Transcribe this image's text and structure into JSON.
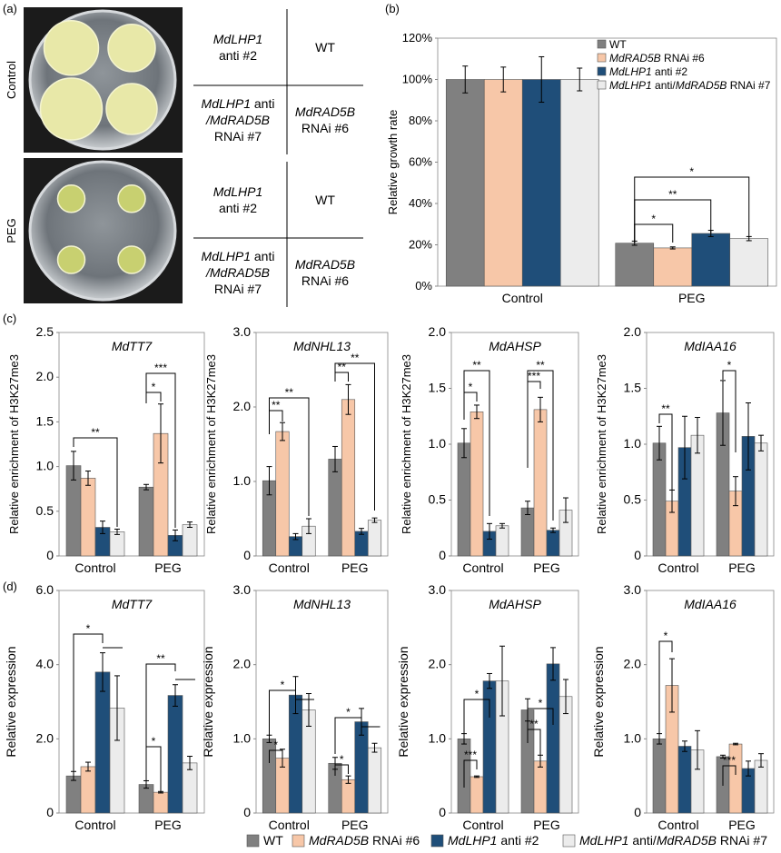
{
  "panel_labels": [
    "(a)",
    "(b)",
    "(c)",
    "(d)"
  ],
  "photo_rows": [
    {
      "label": "Control",
      "colony_color": "#e8e8a8"
    },
    {
      "label": "PEG",
      "colony_color": "#c8d070"
    }
  ],
  "plate_layout": [
    {
      "row": "Control",
      "cells": [
        [
          "MdLHP1",
          "anti #2",
          ""
        ],
        [
          "WT",
          "",
          ""
        ],
        [
          "MdLHP1 anti",
          "/MdRAD5B",
          "RNAi #7"
        ],
        [
          "MdRAD5B",
          "RNAi #6",
          ""
        ]
      ]
    },
    {
      "row": "PEG",
      "cells": [
        [
          "MdLHP1",
          "anti #2",
          ""
        ],
        [
          "WT",
          "",
          ""
        ],
        [
          "MdLHP1 anti",
          "/MdRAD5B",
          "RNAi #7"
        ],
        [
          "MdRAD5B",
          "RNAi #6",
          ""
        ]
      ]
    }
  ],
  "colors": {
    "WT": "#808080",
    "RAD5B": "#f7c7a8",
    "LHP1": "#1f4e79",
    "LHP1_RAD5B": "#ececec",
    "edge": "#555555"
  },
  "legend_b": [
    {
      "key": "WT",
      "italic": "",
      "text": "WT"
    },
    {
      "key": "RAD5B",
      "italic": "MdRAD5B",
      "text": " RNAi #6"
    },
    {
      "key": "LHP1",
      "italic": "MdLHP1",
      "text": " anti #2"
    },
    {
      "key": "LHP1_RAD5B",
      "italic": "MdLHP1",
      "text": " anti/",
      "italic2": "MdRAD5B",
      "text2": " RNAi #7"
    }
  ],
  "legend_bottom": [
    {
      "key": "WT",
      "italic": "",
      "text": "WT"
    },
    {
      "key": "RAD5B",
      "italic": "MdRAD5B",
      "text": " RNAi #6"
    },
    {
      "key": "LHP1",
      "italic": "MdLHP1",
      "text": " anti #2"
    },
    {
      "key": "LHP1_RAD5B",
      "italic": "MdLHP1",
      "text": " anti/",
      "italic2": "MdRAD5B",
      "text2": " RNAi #7"
    }
  ],
  "chart_data": [
    {
      "id": "b",
      "type": "bar",
      "title": "",
      "ylabel": "Relative growth rate",
      "categories": [
        "Control",
        "PEG"
      ],
      "ylim": [
        0,
        120
      ],
      "yticks": [
        "0%",
        "20%",
        "40%",
        "60%",
        "80%",
        "100%",
        "120%"
      ],
      "series": [
        {
          "key": "WT",
          "values": [
            100,
            20.8
          ],
          "errors": [
            6.5,
            1.0
          ]
        },
        {
          "key": "RAD5B",
          "values": [
            100,
            18.5
          ],
          "errors": [
            6.0,
            0.5
          ]
        },
        {
          "key": "LHP1",
          "values": [
            100,
            25.5
          ],
          "errors": [
            11.0,
            1.5
          ]
        },
        {
          "key": "LHP1_RAD5B",
          "values": [
            100,
            23.0
          ],
          "errors": [
            5.5,
            1.0
          ]
        }
      ],
      "annotations": [
        "*",
        "**",
        "*"
      ]
    },
    {
      "id": "c1",
      "type": "bar",
      "title": "MdTT7",
      "ylabel": "Relative enrichment of H3K27me3",
      "categories": [
        "Control",
        "PEG"
      ],
      "ylim": [
        0,
        2.5
      ],
      "yticks": [
        "0",
        "0.5",
        "1.0",
        "1.5",
        "2.0",
        "2.5"
      ],
      "series": [
        {
          "key": "WT",
          "values": [
            1.01,
            0.77
          ],
          "errors": [
            0.16,
            0.03
          ]
        },
        {
          "key": "RAD5B",
          "values": [
            0.87,
            1.37
          ],
          "errors": [
            0.08,
            0.33
          ]
        },
        {
          "key": "LHP1",
          "values": [
            0.32,
            0.23
          ],
          "errors": [
            0.07,
            0.06
          ]
        },
        {
          "key": "LHP1_RAD5B",
          "values": [
            0.27,
            0.35
          ],
          "errors": [
            0.03,
            0.03
          ]
        }
      ],
      "annotations": [
        "**",
        "*",
        "***"
      ]
    },
    {
      "id": "c2",
      "type": "bar",
      "title": "MdNHL13",
      "ylabel": "Relative enrichment of H3K27me3",
      "categories": [
        "Control",
        "PEG"
      ],
      "ylim": [
        0,
        3.0
      ],
      "yticks": [
        "0",
        "1.0",
        "2.0",
        "3.0"
      ],
      "series": [
        {
          "key": "WT",
          "values": [
            1.01,
            1.3
          ],
          "errors": [
            0.19,
            0.17
          ]
        },
        {
          "key": "RAD5B",
          "values": [
            1.67,
            2.1
          ],
          "errors": [
            0.12,
            0.2
          ]
        },
        {
          "key": "LHP1",
          "values": [
            0.26,
            0.33
          ],
          "errors": [
            0.04,
            0.04
          ]
        },
        {
          "key": "LHP1_RAD5B",
          "values": [
            0.4,
            0.48
          ],
          "errors": [
            0.1,
            0.03
          ]
        }
      ],
      "annotations": [
        "**",
        "**",
        "**",
        "**"
      ]
    },
    {
      "id": "c3",
      "type": "bar",
      "title": "MdAHSP",
      "ylabel": "Relative enrichment of H3K27me3",
      "categories": [
        "Control",
        "PEG"
      ],
      "ylim": [
        0,
        2.0
      ],
      "yticks": [
        "0",
        "0.5",
        "1.0",
        "1.5",
        "2.0"
      ],
      "series": [
        {
          "key": "WT",
          "values": [
            1.01,
            0.43
          ],
          "errors": [
            0.13,
            0.06
          ]
        },
        {
          "key": "RAD5B",
          "values": [
            1.29,
            1.31
          ],
          "errors": [
            0.06,
            0.11
          ]
        },
        {
          "key": "LHP1",
          "values": [
            0.22,
            0.23
          ],
          "errors": [
            0.07,
            0.02
          ]
        },
        {
          "key": "LHP1_RAD5B",
          "values": [
            0.27,
            0.41
          ],
          "errors": [
            0.02,
            0.11
          ]
        }
      ],
      "annotations": [
        "*",
        "**",
        "***",
        "**"
      ]
    },
    {
      "id": "c4",
      "type": "bar",
      "title": "MdIAA16",
      "ylabel": "Relative enrichment of H3K27me3",
      "categories": [
        "Control",
        "PEG"
      ],
      "ylim": [
        0,
        2.0
      ],
      "yticks": [
        "0",
        "0.5",
        "1.0",
        "1.5",
        "2.0"
      ],
      "series": [
        {
          "key": "WT",
          "values": [
            1.01,
            1.28
          ],
          "errors": [
            0.15,
            0.29
          ]
        },
        {
          "key": "RAD5B",
          "values": [
            0.49,
            0.58
          ],
          "errors": [
            0.1,
            0.13
          ]
        },
        {
          "key": "LHP1",
          "values": [
            0.97,
            1.07
          ],
          "errors": [
            0.28,
            0.3
          ]
        },
        {
          "key": "LHP1_RAD5B",
          "values": [
            1.08,
            1.01
          ],
          "errors": [
            0.16,
            0.07
          ]
        }
      ],
      "annotations": [
        "**",
        "*"
      ]
    },
    {
      "id": "d1",
      "type": "bar",
      "title": "MdTT7",
      "ylabel": "Relative expression",
      "categories": [
        "Control",
        "PEG"
      ],
      "ylim": [
        0,
        6.0
      ],
      "yticks": [
        "0",
        "2.0",
        "4.0",
        "6.0"
      ],
      "series": [
        {
          "key": "WT",
          "values": [
            1.0,
            0.77
          ],
          "errors": [
            0.12,
            0.1
          ]
        },
        {
          "key": "RAD5B",
          "values": [
            1.25,
            0.56
          ],
          "errors": [
            0.12,
            0.02
          ]
        },
        {
          "key": "LHP1",
          "values": [
            3.8,
            3.17
          ],
          "errors": [
            0.52,
            0.29
          ]
        },
        {
          "key": "LHP1_RAD5B",
          "values": [
            2.83,
            1.35
          ],
          "errors": [
            0.87,
            0.18
          ]
        }
      ],
      "annotations": [
        "*",
        "*",
        "**"
      ]
    },
    {
      "id": "d2",
      "type": "bar",
      "title": "MdNHL13",
      "ylabel": "Relative expression",
      "categories": [
        "Control",
        "PEG"
      ],
      "ylim": [
        0,
        3.0
      ],
      "yticks": [
        "0",
        "1.0",
        "2.0",
        "3.0"
      ],
      "series": [
        {
          "key": "WT",
          "values": [
            1.0,
            0.67
          ],
          "errors": [
            0.05,
            0.08
          ]
        },
        {
          "key": "RAD5B",
          "values": [
            0.74,
            0.45
          ],
          "errors": [
            0.12,
            0.05
          ]
        },
        {
          "key": "LHP1",
          "values": [
            1.59,
            1.23
          ],
          "errors": [
            0.25,
            0.18
          ]
        },
        {
          "key": "LHP1_RAD5B",
          "values": [
            1.39,
            0.88
          ],
          "errors": [
            0.22,
            0.06
          ]
        }
      ],
      "annotations": [
        "*",
        "*",
        "*",
        "*"
      ]
    },
    {
      "id": "d3",
      "type": "bar",
      "title": "MdAHSP",
      "ylabel": "Relative expression",
      "categories": [
        "Control",
        "PEG"
      ],
      "ylim": [
        0,
        3.0
      ],
      "yticks": [
        "0",
        "1.0",
        "2.0",
        "3.0"
      ],
      "series": [
        {
          "key": "WT",
          "values": [
            1.0,
            1.39
          ],
          "errors": [
            0.07,
            0.15
          ]
        },
        {
          "key": "RAD5B",
          "values": [
            0.49,
            0.7
          ],
          "errors": [
            0.01,
            0.08
          ]
        },
        {
          "key": "LHP1",
          "values": [
            1.78,
            2.01
          ],
          "errors": [
            0.1,
            0.22
          ]
        },
        {
          "key": "LHP1_RAD5B",
          "values": [
            1.78,
            1.57
          ],
          "errors": [
            0.47,
            0.23
          ]
        }
      ],
      "annotations": [
        "***",
        "*",
        "**",
        "*"
      ]
    },
    {
      "id": "d4",
      "type": "bar",
      "title": "MdIAA16",
      "ylabel": "Relative expression",
      "categories": [
        "Control",
        "PEG"
      ],
      "ylim": [
        0,
        3.0
      ],
      "yticks": [
        "0",
        "1.0",
        "2.0",
        "3.0"
      ],
      "series": [
        {
          "key": "WT",
          "values": [
            1.0,
            0.76
          ],
          "errors": [
            0.07,
            0.02
          ]
        },
        {
          "key": "RAD5B",
          "values": [
            1.72,
            0.93
          ],
          "errors": [
            0.36,
            0.01
          ]
        },
        {
          "key": "LHP1",
          "values": [
            0.9,
            0.6
          ],
          "errors": [
            0.07,
            0.1
          ]
        },
        {
          "key": "LHP1_RAD5B",
          "values": [
            0.85,
            0.71
          ],
          "errors": [
            0.26,
            0.09
          ]
        }
      ],
      "annotations": [
        "*",
        "***"
      ]
    }
  ]
}
